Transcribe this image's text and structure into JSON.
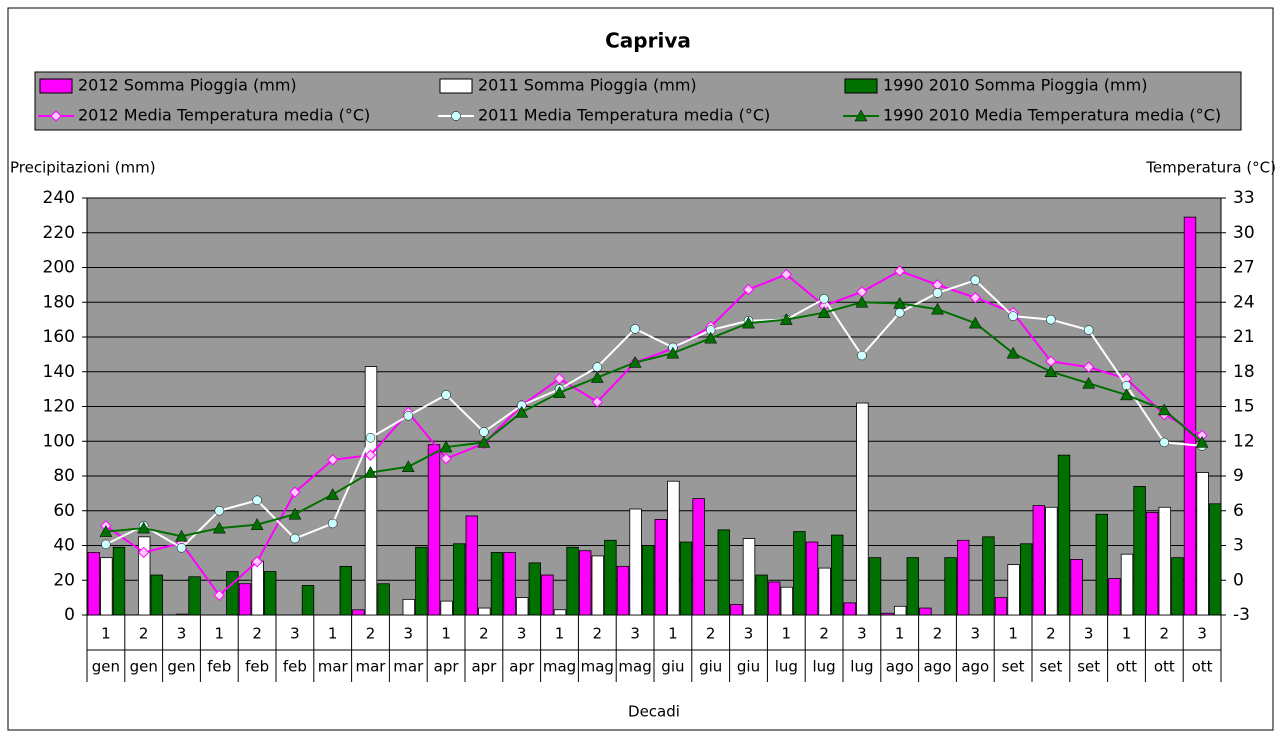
{
  "chart_data": {
    "type": "combo",
    "title": "Capriva",
    "categories": [
      "1",
      "2",
      "3",
      "1",
      "2",
      "3",
      "1",
      "2",
      "3",
      "1",
      "2",
      "3",
      "1",
      "2",
      "3",
      "1",
      "2",
      "3",
      "1",
      "2",
      "3",
      "1",
      "2",
      "3",
      "1",
      "2",
      "3",
      "1",
      "2",
      "3"
    ],
    "category_groups": [
      "gen",
      "gen",
      "gen",
      "feb",
      "feb",
      "feb",
      "mar",
      "mar",
      "mar",
      "apr",
      "apr",
      "apr",
      "mag",
      "mag",
      "mag",
      "giu",
      "giu",
      "giu",
      "lug",
      "lug",
      "lug",
      "ago",
      "ago",
      "ago",
      "set",
      "set",
      "set",
      "ott",
      "ott",
      "ott"
    ],
    "xlabel": "Decadi",
    "ylabel": "Precipitazioni (mm)",
    "y2label": "Temperatura (°C)",
    "ylim": [
      0,
      240
    ],
    "yticks": [
      0,
      20,
      40,
      60,
      80,
      100,
      120,
      140,
      160,
      180,
      200,
      220,
      240
    ],
    "y2lim": [
      -3,
      33
    ],
    "y2ticks": [
      -3,
      0,
      3,
      6,
      9,
      12,
      15,
      18,
      21,
      24,
      27,
      30,
      33
    ],
    "grid": true,
    "series": [
      {
        "name": "2012 Somma Pioggia (mm)",
        "type": "bar",
        "color": "#ff00ff",
        "values": [
          36,
          0,
          0,
          0,
          18,
          0,
          0,
          3,
          0,
          98,
          57,
          36,
          23,
          37,
          28,
          55,
          67,
          6,
          19,
          42,
          7,
          1,
          4,
          43,
          10,
          63,
          32,
          21,
          59,
          229
        ]
      },
      {
        "name": "2011 Somma Pioggia (mm)",
        "type": "bar",
        "color": "#ffffff",
        "values": [
          33,
          45,
          0.5,
          0,
          31,
          0,
          0,
          143,
          9,
          8,
          4,
          10,
          3,
          34,
          61,
          77,
          0,
          44,
          16,
          27,
          122,
          5,
          0,
          0,
          29,
          62,
          0,
          35,
          62,
          82
        ]
      },
      {
        "name": "1990 2010 Somma Pioggia (mm)",
        "type": "bar",
        "color": "#007000",
        "values": [
          39,
          23,
          22,
          25,
          25,
          17,
          28,
          18,
          39,
          41,
          36,
          30,
          39,
          43,
          40,
          42,
          49,
          23,
          48,
          46,
          33,
          33,
          33,
          45,
          41,
          92,
          58,
          74,
          33,
          64
        ]
      },
      {
        "name": "2012 Media Temperatura media (°C)",
        "type": "line",
        "axis": "y2",
        "marker": "diamond",
        "color": "#ff00ff",
        "values": [
          4.7,
          2.4,
          3.2,
          -1.3,
          1.6,
          7.6,
          10.4,
          10.8,
          14.5,
          10.5,
          11.8,
          15.1,
          17.4,
          15.4,
          18.8,
          20.0,
          21.9,
          25.1,
          26.4,
          23.7,
          24.9,
          26.7,
          25.5,
          24.4,
          23.1,
          18.9,
          18.4,
          17.4,
          14.3,
          12.5
        ]
      },
      {
        "name": "2011 Media Temperatura media (°C)",
        "type": "line",
        "axis": "y2",
        "marker": "circle",
        "color": "#ffffff",
        "values": [
          3.1,
          4.7,
          2.8,
          6.0,
          6.9,
          3.6,
          4.9,
          12.3,
          14.2,
          16.0,
          12.8,
          15.1,
          16.5,
          18.4,
          21.7,
          20.1,
          21.6,
          22.4,
          22.5,
          24.3,
          19.4,
          23.1,
          24.8,
          25.9,
          22.8,
          22.5,
          21.6,
          16.8,
          11.9,
          11.6
        ]
      },
      {
        "name": "1990 2010 Media Temperatura media (°C)",
        "type": "line",
        "axis": "y2",
        "marker": "triangle",
        "color": "#007000",
        "values": [
          4.2,
          4.5,
          3.8,
          4.5,
          4.8,
          5.7,
          7.4,
          9.3,
          9.8,
          11.5,
          11.9,
          14.5,
          16.2,
          17.5,
          18.8,
          19.6,
          20.9,
          22.2,
          22.5,
          23.1,
          24.0,
          23.9,
          23.4,
          22.2,
          19.6,
          18.0,
          17.0,
          16.0,
          14.7,
          11.9
        ]
      }
    ]
  }
}
